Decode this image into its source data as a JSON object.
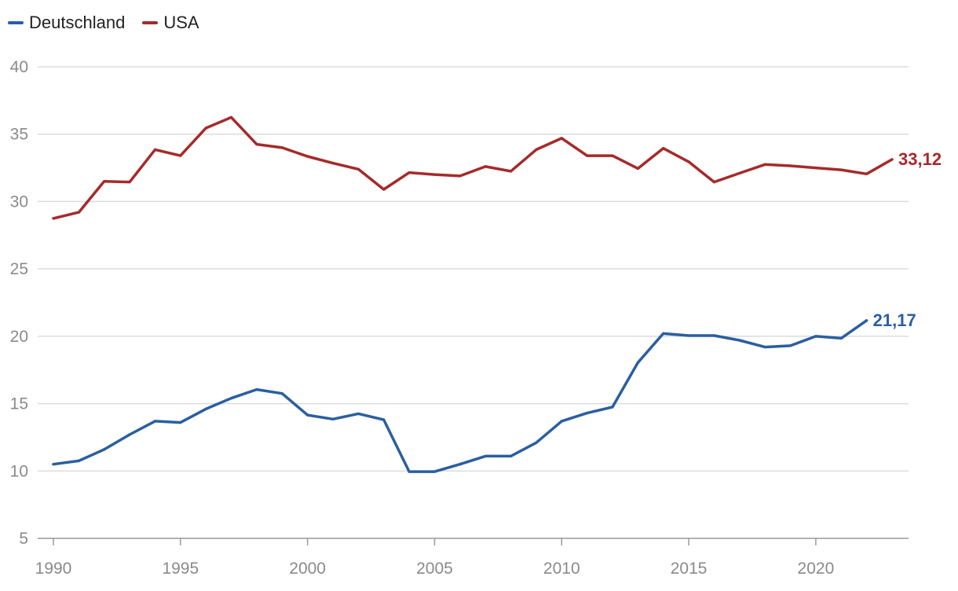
{
  "chart_data": {
    "type": "line",
    "title": "",
    "xlabel": "",
    "ylabel": "",
    "ylim": [
      5,
      40
    ],
    "xlim": [
      1990,
      2023
    ],
    "yticks": [
      5,
      10,
      15,
      20,
      25,
      30,
      35,
      40
    ],
    "xticks": [
      1990,
      1995,
      2000,
      2005,
      2010,
      2015,
      2020
    ],
    "grid": "horizontal",
    "legend_position": "top-left",
    "series": [
      {
        "name": "Deutschland",
        "color": "#2a5fa0",
        "end_label": "21,17",
        "x": [
          1990,
          1991,
          1992,
          1993,
          1994,
          1995,
          1996,
          1997,
          1998,
          1999,
          2000,
          2001,
          2002,
          2003,
          2004,
          2005,
          2006,
          2007,
          2008,
          2009,
          2010,
          2011,
          2012,
          2013,
          2014,
          2015,
          2016,
          2017,
          2018,
          2019,
          2020,
          2021,
          2022
        ],
        "values": [
          10.5,
          10.75,
          11.6,
          12.7,
          13.7,
          13.6,
          14.6,
          15.4,
          16.05,
          15.75,
          14.15,
          13.85,
          14.25,
          13.8,
          9.95,
          9.95,
          10.5,
          11.1,
          11.1,
          12.1,
          13.7,
          14.3,
          14.75,
          18.05,
          20.2,
          20.05,
          20.05,
          19.7,
          19.2,
          19.3,
          20.0,
          19.85,
          21.17
        ]
      },
      {
        "name": "USA",
        "color": "#a62a2a",
        "end_label": "33,12",
        "x": [
          1990,
          1991,
          1992,
          1993,
          1994,
          1995,
          1996,
          1997,
          1998,
          1999,
          2000,
          2001,
          2002,
          2003,
          2004,
          2005,
          2006,
          2007,
          2008,
          2009,
          2010,
          2011,
          2012,
          2013,
          2014,
          2015,
          2016,
          2017,
          2018,
          2019,
          2020,
          2021,
          2022,
          2023
        ],
        "values": [
          28.75,
          29.2,
          31.5,
          31.45,
          33.85,
          33.4,
          35.45,
          36.25,
          34.25,
          34.0,
          33.35,
          32.85,
          32.4,
          30.9,
          32.15,
          32.0,
          31.9,
          32.6,
          32.25,
          33.85,
          34.7,
          33.4,
          33.4,
          32.45,
          33.95,
          32.95,
          31.45,
          32.1,
          32.75,
          32.65,
          32.5,
          32.35,
          32.05,
          33.12
        ]
      }
    ]
  }
}
